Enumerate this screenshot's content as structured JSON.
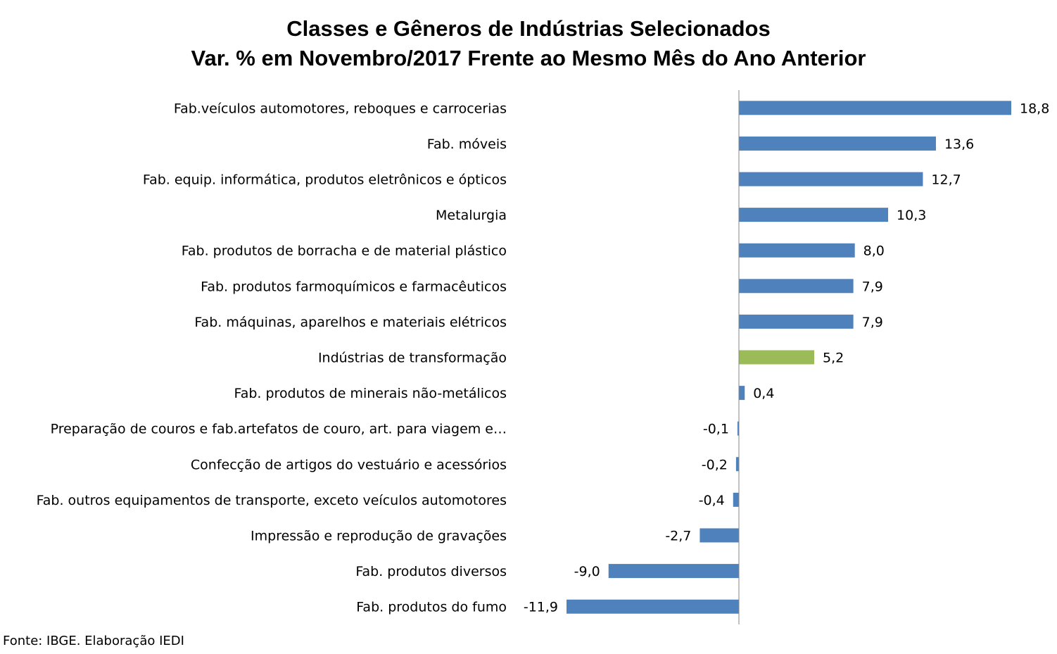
{
  "chart_data": {
    "type": "bar",
    "orientation": "horizontal",
    "title": "Classes e Gêneros de Indústrias Selecionados",
    "subtitle": "Var. % em Novembro/2017 Frente ao Mesmo Mês do Ano Anterior",
    "categories": [
      "Fab.veículos automotores, reboques e carrocerias",
      "Fab. móveis",
      "Fab. equip. informática, produtos eletrônicos e ópticos",
      "Metalurgia",
      "Fab. produtos de borracha e de material plástico",
      "Fab. produtos farmoquímicos e farmacêuticos",
      "Fab. máquinas, aparelhos e materiais elétricos",
      "Indústrias de transformação",
      "Fab. produtos de minerais não-metálicos",
      "Preparação de couros e fab.artefatos de couro, art. para viagem e…",
      "Confecção de artigos do vestuário e acessórios",
      "Fab. outros equipamentos de transporte, exceto veículos automotores",
      "Impressão e reprodução de gravações",
      "Fab. produtos diversos",
      "Fab. produtos do fumo"
    ],
    "values": [
      18.8,
      13.6,
      12.7,
      10.3,
      8.0,
      7.9,
      7.9,
      5.2,
      0.4,
      -0.1,
      -0.2,
      -0.4,
      -2.7,
      -9.0,
      -11.9
    ],
    "data_labels": [
      "18,8",
      "13,6",
      "12,7",
      "10,3",
      "8,0",
      "7,9",
      "7,9",
      "5,2",
      "0,4",
      "-0,1",
      "-0,2",
      "-0,4",
      "-2,7",
      "-9,0",
      "-11,9"
    ],
    "highlight_category": "Indústrias de transformação",
    "colors": {
      "bar": "#4f81bd",
      "highlight": "#9bbb59",
      "axis": "#868686"
    },
    "xlim": [
      -11.9,
      18.8
    ],
    "grid": false,
    "legend": "none"
  },
  "source_note": "Fonte: IBGE. Elaboração IEDI"
}
